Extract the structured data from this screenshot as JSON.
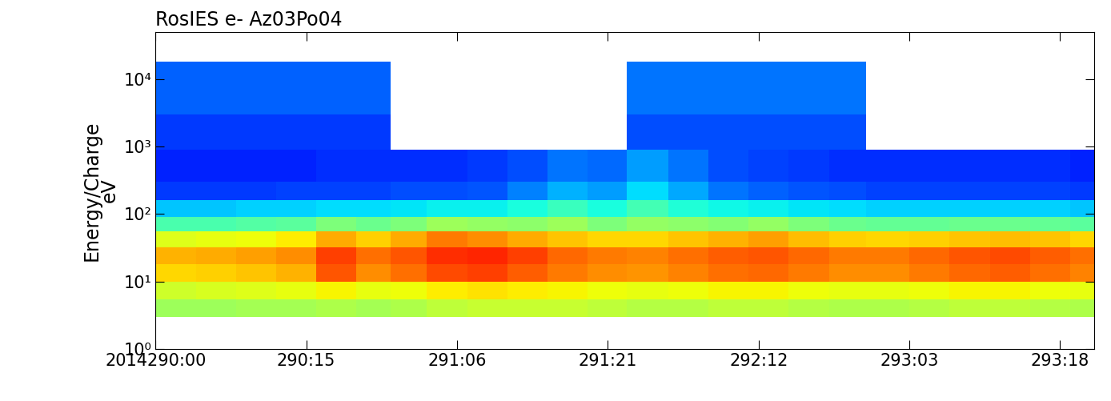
{
  "chart_data": {
    "type": "heatmap",
    "title": "RosIES e- Az03Po04",
    "y_label": "Energy/Charge\neV",
    "log": "y",
    "x_edges": [
      0,
      4,
      8,
      12,
      16,
      20,
      23.4,
      27,
      31,
      35,
      39,
      43,
      46.9,
      51,
      55,
      59,
      63,
      67,
      70.7,
      75,
      79,
      83,
      87,
      91,
      93.4
    ],
    "y_edges": [
      3,
      5.5,
      10,
      18,
      32,
      55,
      90,
      160,
      300,
      900,
      3000,
      18000
    ],
    "cells": [
      [
        5.4,
        5.4,
        5.5,
        5.5,
        5.6,
        5.5,
        5.6,
        5.8,
        5.9,
        5.9,
        5.9,
        5.8,
        5.7,
        5.7,
        5.8,
        5.8,
        5.7,
        5.6,
        5.6,
        5.7,
        5.8,
        5.8,
        5.7,
        5.6
      ],
      [
        6.0,
        6.1,
        6.2,
        6.3,
        6.5,
        6.3,
        6.4,
        6.6,
        6.7,
        6.6,
        6.5,
        6.4,
        6.3,
        6.4,
        6.5,
        6.5,
        6.4,
        6.3,
        6.3,
        6.4,
        6.5,
        6.5,
        6.4,
        6.3
      ],
      [
        6.8,
        6.9,
        7.0,
        7.2,
        8.2,
        7.6,
        7.9,
        8.3,
        8.4,
        8.1,
        7.8,
        7.6,
        7.5,
        7.7,
        7.9,
        8.0,
        7.8,
        7.6,
        7.6,
        7.8,
        8.0,
        8.1,
        7.9,
        7.7
      ],
      [
        7.2,
        7.3,
        7.4,
        7.6,
        8.4,
        7.9,
        8.2,
        8.6,
        8.7,
        8.4,
        8.0,
        7.8,
        7.7,
        7.9,
        8.1,
        8.2,
        8.0,
        7.8,
        7.8,
        8.0,
        8.2,
        8.3,
        8.1,
        7.9
      ],
      [
        6.2,
        6.3,
        6.4,
        6.6,
        7.3,
        6.9,
        7.3,
        7.8,
        7.6,
        7.3,
        7.0,
        6.8,
        6.8,
        7.0,
        7.2,
        7.4,
        7.1,
        6.9,
        6.8,
        6.9,
        7.0,
        7.1,
        7.0,
        6.8
      ],
      [
        4.4,
        4.4,
        4.5,
        4.6,
        5.0,
        4.8,
        5.0,
        5.4,
        5.3,
        5.2,
        5.4,
        5.0,
        5.3,
        5.2,
        5.1,
        5.3,
        5.0,
        4.8,
        4.7,
        4.7,
        4.8,
        4.8,
        4.7,
        4.6
      ],
      [
        3.2,
        3.2,
        3.3,
        3.3,
        3.4,
        3.4,
        3.5,
        3.6,
        3.6,
        3.8,
        4.2,
        3.8,
        4.3,
        3.9,
        3.7,
        3.6,
        3.5,
        3.4,
        3.3,
        3.3,
        3.3,
        3.3,
        3.3,
        3.2
      ],
      [
        1.8,
        1.8,
        1.8,
        1.9,
        1.9,
        1.9,
        2.0,
        2.0,
        2.1,
        2.5,
        3.0,
        2.8,
        3.4,
        2.9,
        2.4,
        2.2,
        2.1,
        2.0,
        1.9,
        1.9,
        1.9,
        1.9,
        1.9,
        1.8
      ],
      [
        1.6,
        1.6,
        1.6,
        1.6,
        1.7,
        1.7,
        1.7,
        1.7,
        1.8,
        2.0,
        2.4,
        2.3,
        2.8,
        2.4,
        2.0,
        1.9,
        1.8,
        1.7,
        1.7,
        1.7,
        1.7,
        1.7,
        1.7,
        1.6
      ],
      [
        1.8,
        1.8,
        1.8,
        1.8,
        1.8,
        1.8,
        null,
        null,
        null,
        null,
        null,
        null,
        2.0,
        2.0,
        2.0,
        2.0,
        2.0,
        2.0,
        null,
        null,
        null,
        null,
        null,
        null
      ],
      [
        2.2,
        2.2,
        2.2,
        2.2,
        2.2,
        2.2,
        null,
        null,
        null,
        null,
        null,
        null,
        2.4,
        2.4,
        2.4,
        2.4,
        2.4,
        2.4,
        null,
        null,
        null,
        null,
        null,
        null
      ]
    ],
    "color_range": [
      0,
      10
    ],
    "xlim": [
      0,
      93.4
    ],
    "xticks": [
      {
        "value": 0,
        "label": "2014290:00"
      },
      {
        "value": 15,
        "label": "290:15"
      },
      {
        "value": 30,
        "label": "291:06"
      },
      {
        "value": 45,
        "label": "291:21"
      },
      {
        "value": 60,
        "label": "292:12"
      },
      {
        "value": 75,
        "label": "293:03"
      },
      {
        "value": 90,
        "label": "293:18"
      }
    ],
    "ylim": [
      1,
      50000
    ],
    "yticks": [
      {
        "value": 1,
        "label": "10⁰"
      },
      {
        "value": 10,
        "label": "10¹"
      },
      {
        "value": 100,
        "label": "10²"
      },
      {
        "value": 1000,
        "label": "10³"
      },
      {
        "value": 10000,
        "label": "10⁴"
      }
    ]
  }
}
